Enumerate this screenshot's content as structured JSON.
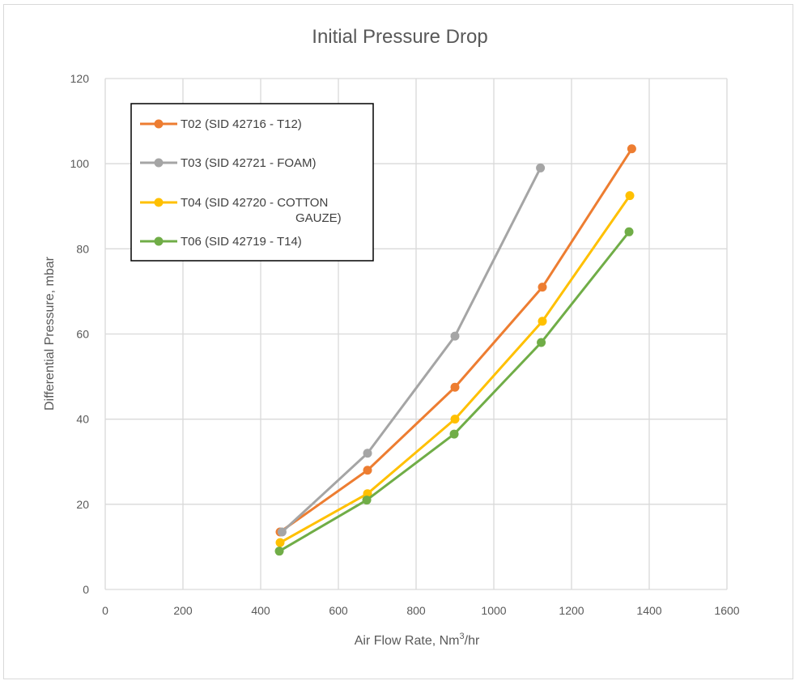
{
  "chart_data": {
    "type": "line",
    "title": "Initial Pressure Drop",
    "xlabel": "Air Flow Rate, Nm",
    "xlabel_sup": "3",
    "xlabel_suffix": "/hr",
    "ylabel": "Differential Pressure, mbar",
    "xlim": [
      0,
      1600
    ],
    "ylim": [
      0,
      120
    ],
    "xticks": [
      0,
      200,
      400,
      600,
      800,
      1000,
      1200,
      1400,
      1600
    ],
    "yticks": [
      0,
      20,
      40,
      60,
      80,
      100,
      120
    ],
    "grid": true,
    "legend_position": "top-left",
    "series": [
      {
        "name": "T02 (SID 42716 - T12)",
        "legend_lines": [
          "T02 (SID 42716 - T12)"
        ],
        "color": "#ED7D31",
        "x": [
          450,
          675,
          900,
          1125,
          1355
        ],
        "y": [
          13.5,
          28,
          47.5,
          71,
          103.5
        ]
      },
      {
        "name": "T03 (SID 42721 - FOAM)",
        "legend_lines": [
          "T03 (SID 42721 - FOAM)"
        ],
        "color": "#A5A5A5",
        "x": [
          455,
          675,
          900,
          1120
        ],
        "y": [
          13.5,
          32,
          59.5,
          99
        ]
      },
      {
        "name": "T04 (SID 42720 - COTTON GAUZE)",
        "legend_lines": [
          "T04 (SID 42720 -  COTTON",
          "GAUZE)"
        ],
        "color": "#FFC000",
        "x": [
          450,
          675,
          900,
          1125,
          1350
        ],
        "y": [
          11,
          22.5,
          40,
          63,
          92.5
        ]
      },
      {
        "name": "T06 (SID 42719 - T14)",
        "legend_lines": [
          "T06 (SID 42719 - T14)"
        ],
        "color": "#70AD47",
        "x": [
          448,
          673,
          898,
          1122,
          1348
        ],
        "y": [
          9,
          21,
          36.5,
          58,
          84
        ]
      }
    ]
  }
}
